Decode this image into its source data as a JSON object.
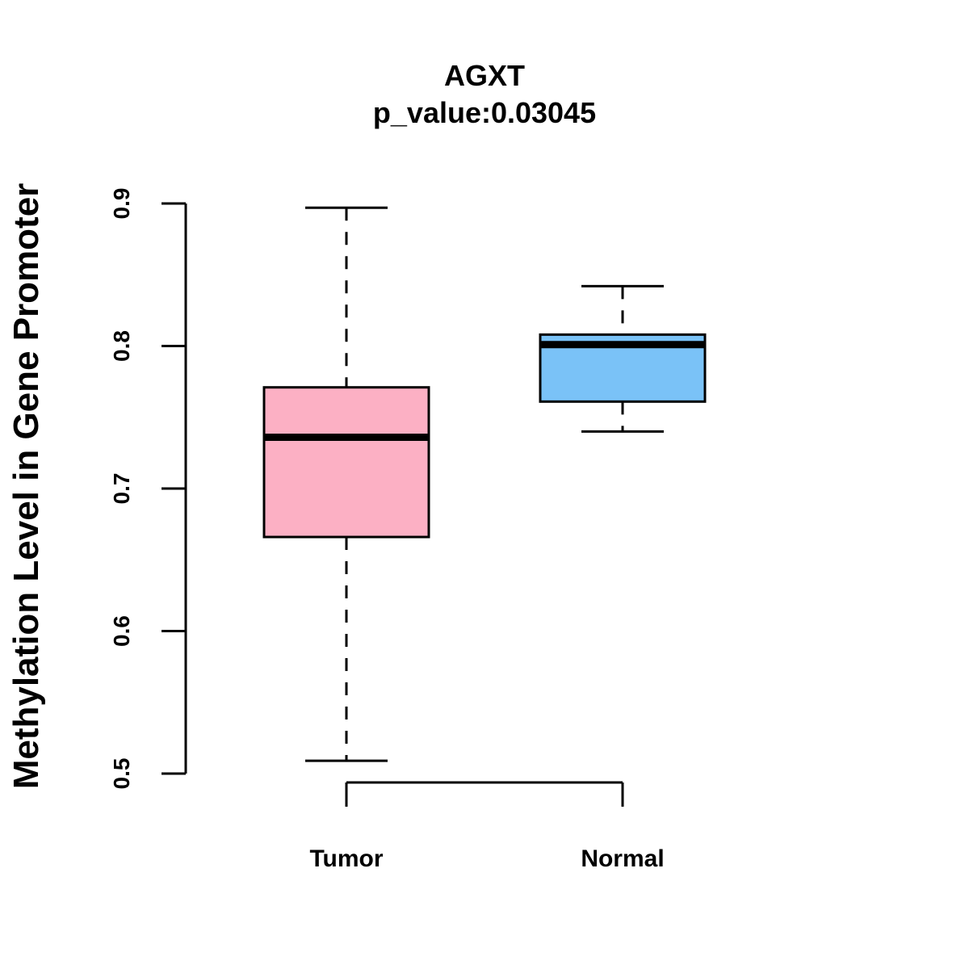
{
  "chart_data": {
    "type": "boxplot",
    "title": "AGXT",
    "subtitle": "p_value:0.03045",
    "xlabel": "",
    "ylabel": "Methylation Level in Gene Promoter",
    "ylim": [
      0.5,
      0.9
    ],
    "yticks": [
      0.5,
      0.6,
      0.7,
      0.8,
      0.9
    ],
    "ytick_labels": [
      "0.5",
      "0.6",
      "0.7",
      "0.8",
      "0.9"
    ],
    "categories": [
      "Tumor",
      "Normal"
    ],
    "series": [
      {
        "name": "Tumor",
        "whisker_low": 0.509,
        "q1": 0.666,
        "median": 0.736,
        "q3": 0.771,
        "whisker_high": 0.897,
        "color": "#FCB0C4"
      },
      {
        "name": "Normal",
        "whisker_low": 0.74,
        "q1": 0.761,
        "median": 0.801,
        "q3": 0.808,
        "whisker_high": 0.842,
        "color": "#7AC2F7"
      }
    ]
  }
}
